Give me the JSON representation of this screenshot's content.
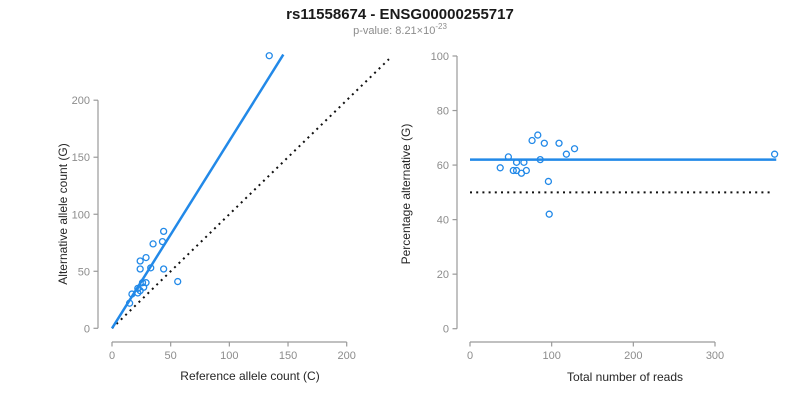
{
  "header": {
    "title": "rs11558674 - ENSG00000255717",
    "pvalue_label": "p-value: 8.21×10",
    "pvalue_exponent": "-23"
  },
  "colors": {
    "accent_blue": "#2289e8",
    "reference_black": "#111111",
    "axis_gray": "#9a9a9a",
    "tick_text_gray": "#8c8c8c",
    "background": "#ffffff"
  },
  "chart_data": [
    {
      "type": "scatter",
      "panel": "left",
      "xlabel": "Reference allele count (C)",
      "ylabel": "Alternative allele count (G)",
      "xlim": [
        0,
        200
      ],
      "ylim": [
        0,
        200
      ],
      "xticks": [
        0,
        50,
        100,
        150,
        200
      ],
      "yticks": [
        0,
        50,
        100,
        150,
        200
      ],
      "grid": false,
      "legend": "none",
      "marker": "open-circle",
      "points": [
        [
          15,
          22
        ],
        [
          17,
          30
        ],
        [
          22,
          31
        ],
        [
          24,
          33
        ],
        [
          22,
          35
        ],
        [
          27,
          36
        ],
        [
          26,
          40
        ],
        [
          29,
          40
        ],
        [
          24,
          52
        ],
        [
          24,
          59
        ],
        [
          33,
          53
        ],
        [
          29,
          62
        ],
        [
          44,
          52
        ],
        [
          56,
          41
        ],
        [
          35,
          74
        ],
        [
          43,
          76
        ],
        [
          44,
          85
        ],
        [
          134,
          239
        ]
      ],
      "fit_line": {
        "style": "solid",
        "meaning": "regression fit",
        "x": [
          0,
          146
        ],
        "y": [
          0,
          240
        ]
      },
      "reference_line": {
        "style": "dotted",
        "meaning": "identity y = x",
        "x": [
          0,
          236
        ],
        "y": [
          0,
          236
        ]
      }
    },
    {
      "type": "scatter",
      "panel": "right",
      "xlabel": "Total number of reads",
      "ylabel": "Percentage alternative (G)",
      "xlim": [
        0,
        300
      ],
      "ylim": [
        0,
        100
      ],
      "xticks": [
        0,
        100,
        200,
        300
      ],
      "yticks": [
        0,
        20,
        40,
        60,
        80,
        100
      ],
      "grid": false,
      "legend": "none",
      "marker": "open-circle",
      "points": [
        [
          37,
          59
        ],
        [
          47,
          63
        ],
        [
          53,
          58
        ],
        [
          57,
          58
        ],
        [
          57,
          61
        ],
        [
          63,
          57
        ],
        [
          66,
          61
        ],
        [
          69,
          58
        ],
        [
          76,
          69
        ],
        [
          83,
          71
        ],
        [
          86,
          62
        ],
        [
          91,
          68
        ],
        [
          96,
          54
        ],
        [
          97,
          42
        ],
        [
          109,
          68
        ],
        [
          118,
          64
        ],
        [
          128,
          66
        ],
        [
          373,
          64
        ]
      ],
      "fit_line": {
        "style": "solid",
        "meaning": "mean percentage ≈ 62",
        "x": [
          0,
          375
        ],
        "y": [
          62,
          62
        ]
      },
      "reference_line": {
        "style": "dotted",
        "meaning": "50% expectation",
        "x": [
          0,
          367
        ],
        "y": [
          50,
          50
        ]
      }
    }
  ]
}
